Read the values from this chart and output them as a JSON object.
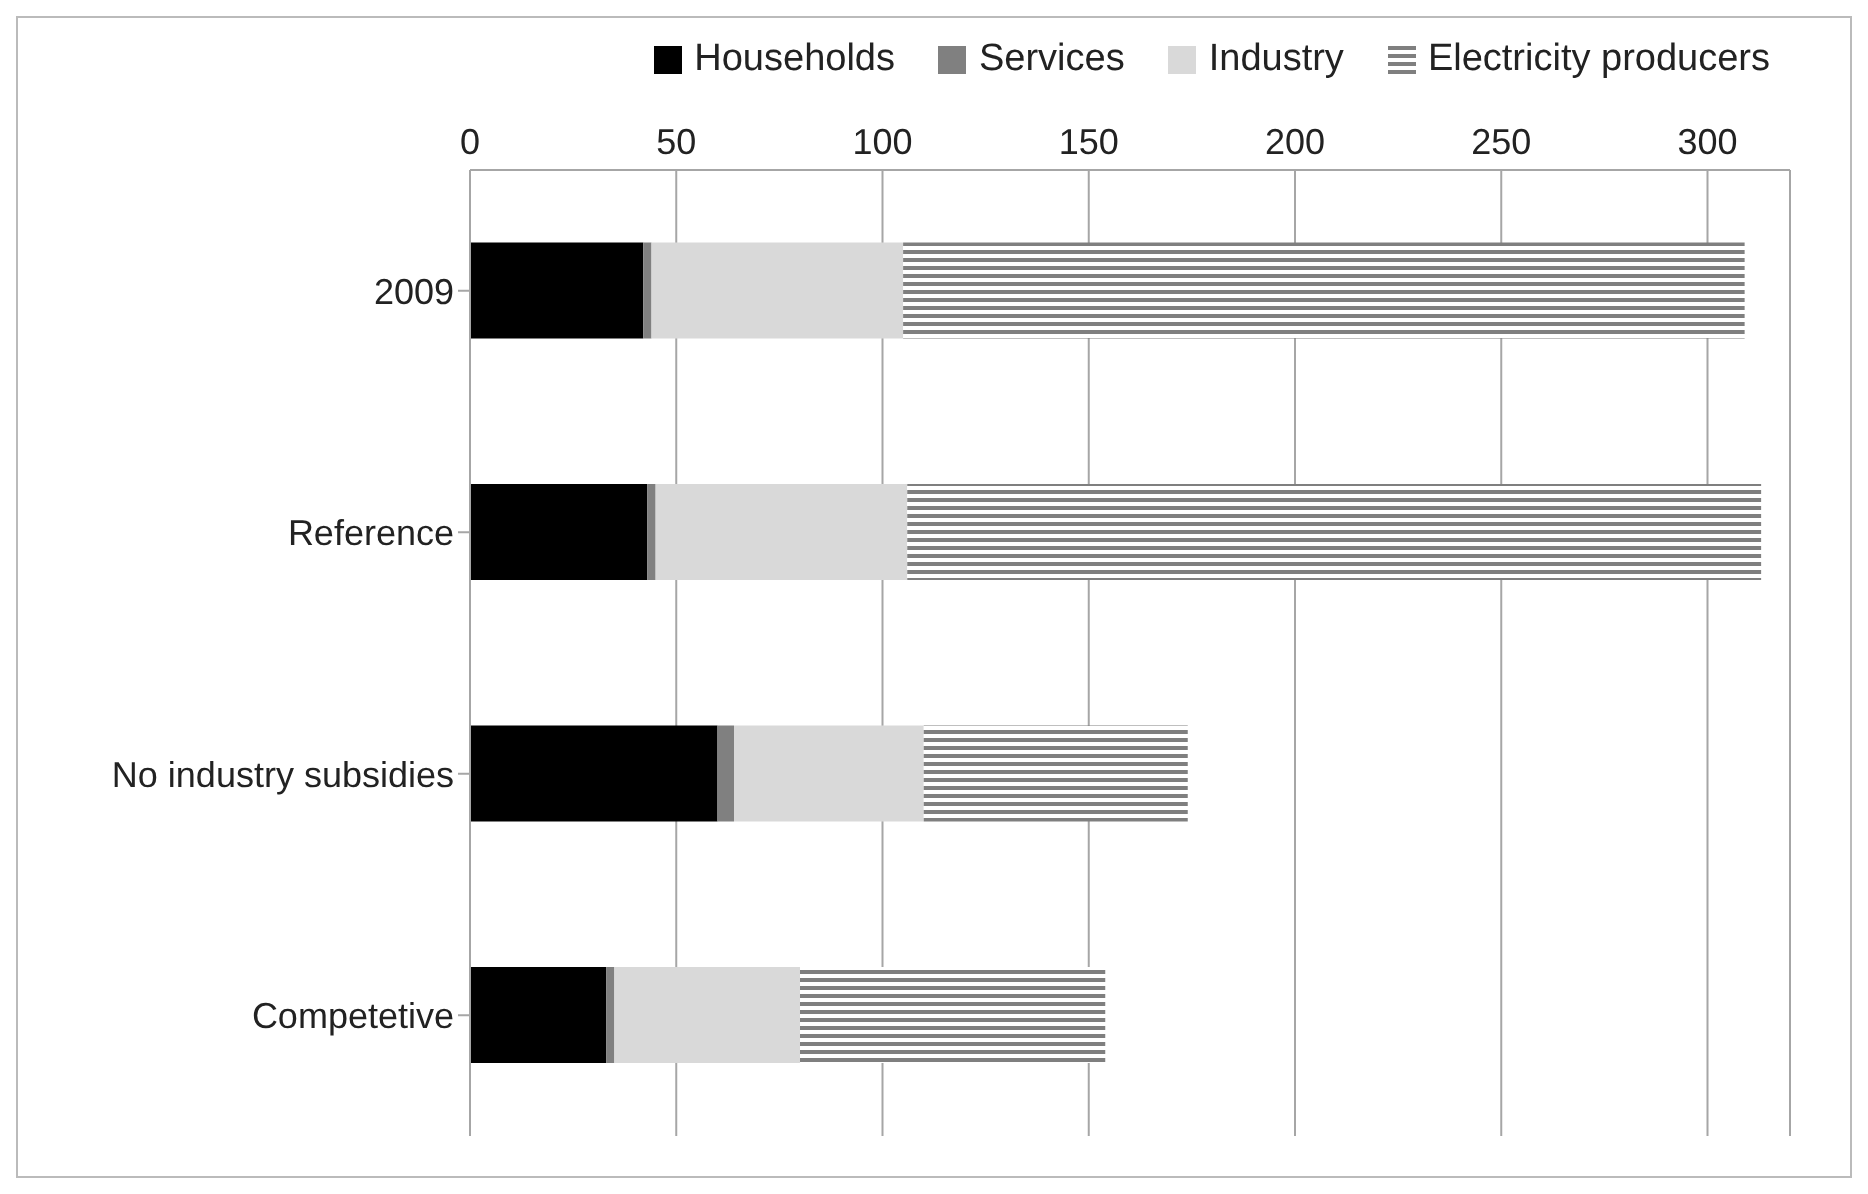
{
  "chart_data": {
    "type": "bar",
    "orientation": "horizontal",
    "stacked": true,
    "categories": [
      "2009",
      "Reference",
      "No industry subsidies",
      "Competetive"
    ],
    "series": [
      {
        "name": "Households",
        "color": "#000000",
        "values": [
          42,
          43,
          60,
          33
        ]
      },
      {
        "name": "Services",
        "color": "#808080",
        "values": [
          2,
          2,
          4,
          2
        ]
      },
      {
        "name": "Industry",
        "color": "#d9d9d9",
        "values": [
          61,
          61,
          46,
          45
        ]
      },
      {
        "name": "Electricity producers",
        "color": "#7f7f7f",
        "values": [
          204,
          207,
          64,
          74
        ]
      }
    ],
    "xlim": [
      0,
      320
    ],
    "xticks": [
      0,
      50,
      100,
      150,
      200,
      250,
      300
    ],
    "grid": "x",
    "legend": "top"
  }
}
